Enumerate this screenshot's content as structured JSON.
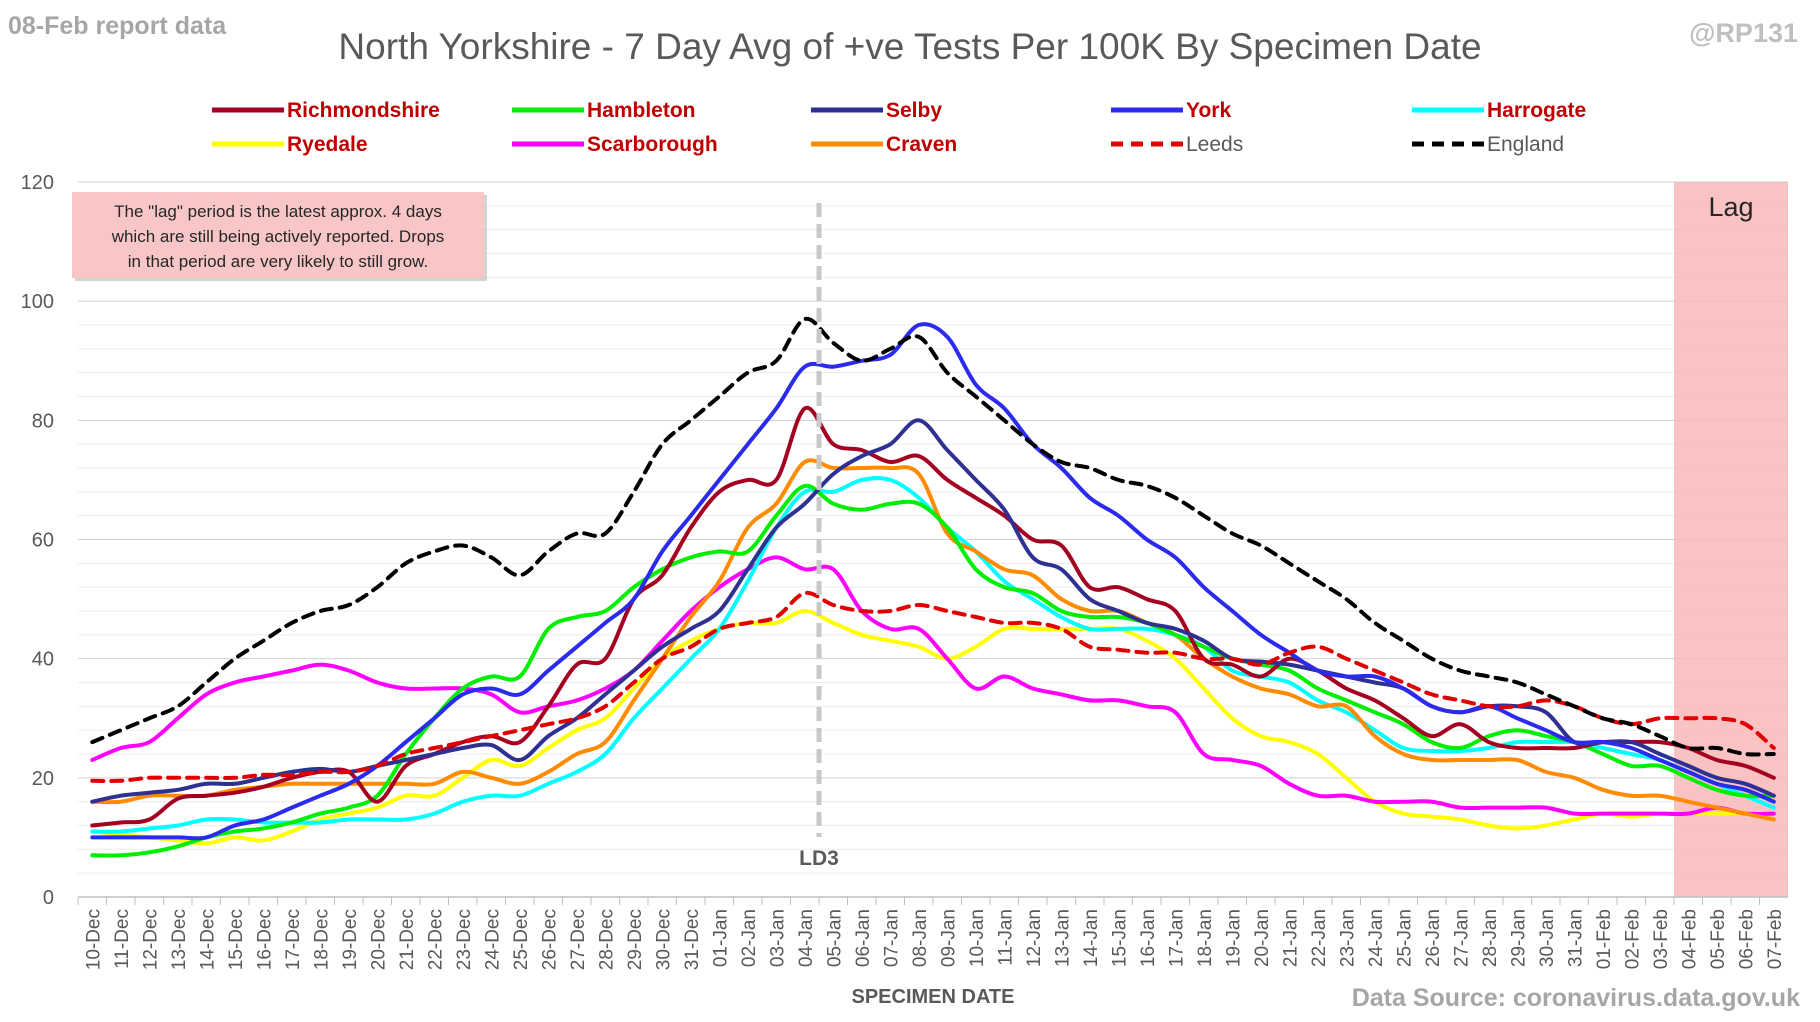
{
  "corner_left": "08-Feb report data",
  "corner_right": "@RP131",
  "source": "Data Source: coronavirus.data.gov.uk",
  "chart_data": {
    "type": "line",
    "title": "North Yorkshire - 7 Day Avg of +ve Tests Per 100K By Specimen Date",
    "xlabel": "SPECIMEN DATE",
    "ylabel": "",
    "ylim": [
      0,
      120
    ],
    "yticks": [
      0,
      20,
      40,
      60,
      80,
      100,
      120
    ],
    "grid": true,
    "legend_position": "top",
    "categories": [
      "10-Dec",
      "11-Dec",
      "12-Dec",
      "13-Dec",
      "14-Dec",
      "15-Dec",
      "16-Dec",
      "17-Dec",
      "18-Dec",
      "19-Dec",
      "20-Dec",
      "21-Dec",
      "22-Dec",
      "23-Dec",
      "24-Dec",
      "25-Dec",
      "26-Dec",
      "27-Dec",
      "28-Dec",
      "29-Dec",
      "30-Dec",
      "31-Dec",
      "01-Jan",
      "02-Jan",
      "03-Jan",
      "04-Jan",
      "05-Jan",
      "06-Jan",
      "07-Jan",
      "08-Jan",
      "09-Jan",
      "10-Jan",
      "11-Jan",
      "12-Jan",
      "13-Jan",
      "14-Jan",
      "15-Jan",
      "16-Jan",
      "17-Jan",
      "18-Jan",
      "19-Jan",
      "20-Jan",
      "21-Jan",
      "22-Jan",
      "23-Jan",
      "24-Jan",
      "25-Jan",
      "26-Jan",
      "27-Jan",
      "28-Jan",
      "29-Jan",
      "30-Jan",
      "31-Jan",
      "01-Feb",
      "02-Feb",
      "03-Feb",
      "04-Feb",
      "05-Feb",
      "06-Feb",
      "07-Feb"
    ],
    "series": [
      {
        "name": "Richmondshire",
        "color": "#a50021",
        "style": "solid",
        "label_color": "#c00000",
        "values": [
          12,
          12.5,
          13,
          16.5,
          17,
          17.5,
          18.5,
          20,
          21,
          21,
          16,
          22,
          24,
          26,
          27,
          26,
          32,
          39,
          40,
          50,
          54,
          62,
          68,
          70,
          70,
          82,
          76,
          75,
          73,
          74,
          70,
          67,
          64,
          60,
          59,
          52,
          52,
          50,
          48,
          40,
          39,
          37,
          40,
          38,
          35,
          33,
          30,
          27,
          29,
          26,
          25,
          25,
          25,
          26,
          26,
          26,
          25,
          23,
          22,
          20
        ]
      },
      {
        "name": "Hambleton",
        "color": "#00ee00",
        "style": "solid",
        "label_color": "#c00000",
        "values": [
          7,
          7,
          7.5,
          8.5,
          10,
          11,
          11.5,
          12.5,
          14,
          15,
          17,
          24,
          30,
          35,
          37,
          37,
          45,
          47,
          48,
          52,
          55,
          57,
          58,
          58,
          64,
          69,
          66,
          65,
          66,
          66,
          62,
          55,
          52,
          51,
          48,
          47,
          47,
          46,
          44,
          42,
          40,
          39,
          38,
          35,
          33,
          31,
          29,
          26,
          25,
          27,
          28,
          27,
          26,
          24,
          22,
          22,
          20,
          18,
          17,
          17
        ]
      },
      {
        "name": "Selby",
        "color": "#2e3192",
        "style": "solid",
        "label_color": "#c00000",
        "values": [
          16,
          17,
          17.5,
          18,
          19,
          19,
          20,
          21,
          21.5,
          21,
          22,
          23,
          24,
          25,
          25.5,
          23,
          27,
          30,
          34,
          38,
          42,
          45,
          48,
          55,
          62,
          66,
          71,
          74,
          76,
          80,
          75,
          70,
          65,
          57,
          55,
          50,
          48,
          46,
          45,
          43,
          40,
          39.5,
          39,
          38,
          37,
          36,
          35,
          32,
          31,
          32,
          32,
          31,
          26,
          26,
          26,
          24,
          22,
          20,
          19,
          17
        ]
      },
      {
        "name": "York",
        "color": "#2b2bef",
        "style": "solid",
        "label_color": "#c00000",
        "values": [
          10,
          10,
          10,
          10,
          10,
          12,
          13,
          15,
          17,
          19,
          22,
          26,
          30,
          34,
          35,
          34,
          38,
          42,
          46,
          50,
          58,
          64,
          70,
          76,
          82,
          89,
          89,
          90,
          91,
          96,
          94,
          86,
          82,
          76,
          72,
          67,
          64,
          60,
          57,
          52,
          48,
          44,
          41,
          38,
          37,
          37,
          35,
          32,
          31,
          32,
          30,
          28,
          26,
          26,
          25,
          23,
          21,
          19,
          18,
          16
        ]
      },
      {
        "name": "Harrogate",
        "color": "#00ffff",
        "style": "solid",
        "label_color": "#c00000",
        "values": [
          11,
          11,
          11.5,
          12,
          13,
          13,
          12.5,
          12.5,
          12.5,
          13,
          13,
          13,
          14,
          16,
          17,
          17,
          19,
          21,
          24,
          30,
          35,
          40,
          45,
          53,
          62,
          68,
          68,
          70,
          70,
          67,
          62,
          58,
          53,
          50,
          47,
          45,
          45,
          45,
          44,
          42,
          38,
          37,
          36,
          33,
          31,
          28,
          25,
          24.5,
          24.5,
          25,
          26,
          26,
          26,
          25,
          24,
          23,
          21,
          19,
          17,
          15
        ]
      },
      {
        "name": "Ryedale",
        "color": "#ffff00",
        "style": "solid",
        "label_color": "#c00000",
        "values": [
          11,
          10.5,
          10,
          9.5,
          9,
          10,
          9.5,
          11,
          13,
          14,
          15,
          17,
          17,
          20,
          23,
          22,
          25,
          28,
          30,
          35,
          40,
          43,
          45,
          46,
          46,
          48,
          46,
          44,
          43,
          42,
          40,
          42,
          45,
          45,
          45,
          45,
          45,
          43,
          40,
          35,
          30,
          27,
          26,
          24,
          20,
          16,
          14,
          13.5,
          13,
          12,
          11.5,
          12,
          13,
          14,
          13.5,
          14,
          14,
          14,
          14,
          13
        ]
      },
      {
        "name": "Scarborough",
        "color": "#ff00ff",
        "style": "solid",
        "label_color": "#c00000",
        "values": [
          23,
          25,
          26,
          30,
          34,
          36,
          37,
          38,
          39,
          38,
          36,
          35,
          35,
          35,
          34,
          31,
          32,
          33,
          35,
          38,
          43,
          48,
          52,
          55,
          57,
          55,
          55,
          48,
          45,
          45,
          40,
          35,
          37,
          35,
          34,
          33,
          33,
          32,
          31,
          24,
          23,
          22,
          19,
          17,
          17,
          16,
          16,
          16,
          15,
          15,
          15,
          15,
          14,
          14,
          14,
          14,
          14,
          15,
          14,
          14
        ]
      },
      {
        "name": "Craven",
        "color": "#ff8c00",
        "style": "solid",
        "label_color": "#c00000",
        "values": [
          16,
          16,
          17,
          17,
          17,
          18,
          18.5,
          19,
          19,
          19,
          19,
          19,
          19,
          21,
          20,
          19,
          21,
          24,
          26,
          33,
          40,
          47,
          53,
          62,
          66,
          73,
          72,
          72,
          72,
          71,
          61,
          58,
          55,
          54,
          50,
          48,
          48,
          46,
          44,
          40,
          37,
          35,
          34,
          32,
          32,
          27,
          24,
          23,
          23,
          23,
          23,
          21,
          20,
          18,
          17,
          17,
          16,
          15,
          14,
          13
        ]
      },
      {
        "name": "Leeds",
        "color": "#e00000",
        "style": "dashed",
        "label_color": "#595959",
        "values": [
          19.5,
          19.5,
          20,
          20,
          20,
          20,
          20.5,
          20.5,
          21,
          21,
          22,
          24,
          25,
          26,
          27,
          28,
          29,
          30,
          32,
          36,
          40,
          42,
          45,
          46,
          47,
          51,
          49,
          48,
          48,
          49,
          48,
          47,
          46,
          46,
          45,
          42,
          41.5,
          41,
          41,
          40,
          40,
          39,
          41,
          42,
          40,
          38,
          36,
          34,
          33,
          32,
          32,
          33,
          32,
          30,
          29,
          30,
          30,
          30,
          29,
          25
        ]
      },
      {
        "name": "England",
        "color": "#000000",
        "style": "dashed",
        "label_color": "#595959",
        "values": [
          26,
          28,
          30,
          32,
          36,
          40,
          43,
          46,
          48,
          49,
          52,
          56,
          58,
          59,
          57,
          54,
          58,
          61,
          61,
          68,
          76,
          80,
          84,
          88,
          90,
          97,
          93,
          90,
          92,
          94,
          88,
          84,
          80,
          76,
          73,
          72,
          70,
          69,
          67,
          64,
          61,
          59,
          56,
          53,
          50,
          46,
          43,
          40,
          38,
          37,
          36,
          34,
          32,
          30,
          29,
          27,
          25,
          25,
          24,
          24
        ]
      }
    ],
    "annotations": {
      "marker_line": {
        "at": "05-Jan",
        "label": "LD3"
      },
      "lag": {
        "from": "04-Feb",
        "to": "07-Feb",
        "label": "Lag"
      },
      "note": "The \"lag\" period is the latest approx. 4 days which are still being actively reported.  Drops in that period are very likely to still grow.",
      "note_lines": [
        "The \"lag\" period is the latest approx. 4 days",
        "which are still being actively reported.  Drops",
        "in that period are very likely to still grow."
      ]
    }
  }
}
